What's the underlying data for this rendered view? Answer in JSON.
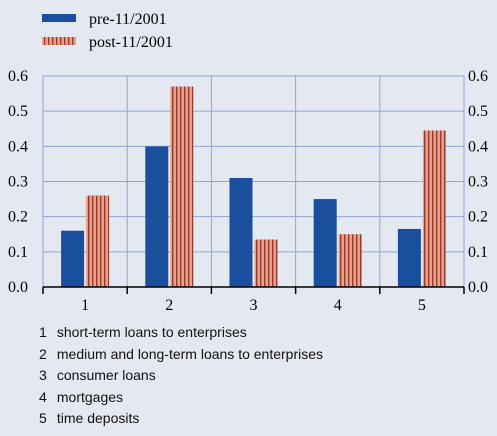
{
  "chart_data": {
    "type": "bar",
    "categories": [
      "1",
      "2",
      "3",
      "4",
      "5"
    ],
    "series": [
      {
        "name": "pre-11/2001",
        "values": [
          0.16,
          0.4,
          0.31,
          0.25,
          0.165
        ],
        "color": "#1a4f9e"
      },
      {
        "name": "post-11/2001",
        "values": [
          0.26,
          0.57,
          0.135,
          0.15,
          0.445
        ],
        "color": "#e6a08e",
        "stripe_color": "#9a3b2a"
      }
    ],
    "ylim": [
      0,
      0.6
    ],
    "yticks": [
      "0.0",
      "0.1",
      "0.2",
      "0.3",
      "0.4",
      "0.5",
      "0.6"
    ],
    "grid": true,
    "dual_y_axis": true,
    "legend_position": "top-left",
    "background_color": "#e3e8f1",
    "grid_color": "#8fa6d8"
  },
  "notes": [
    {
      "num": "1",
      "text": "short-term loans to enterprises"
    },
    {
      "num": "2",
      "text": "medium and long-term loans to enterprises"
    },
    {
      "num": "3",
      "text": "consumer loans"
    },
    {
      "num": "4",
      "text": "mortgages"
    },
    {
      "num": "5",
      "text": "time deposits"
    }
  ]
}
